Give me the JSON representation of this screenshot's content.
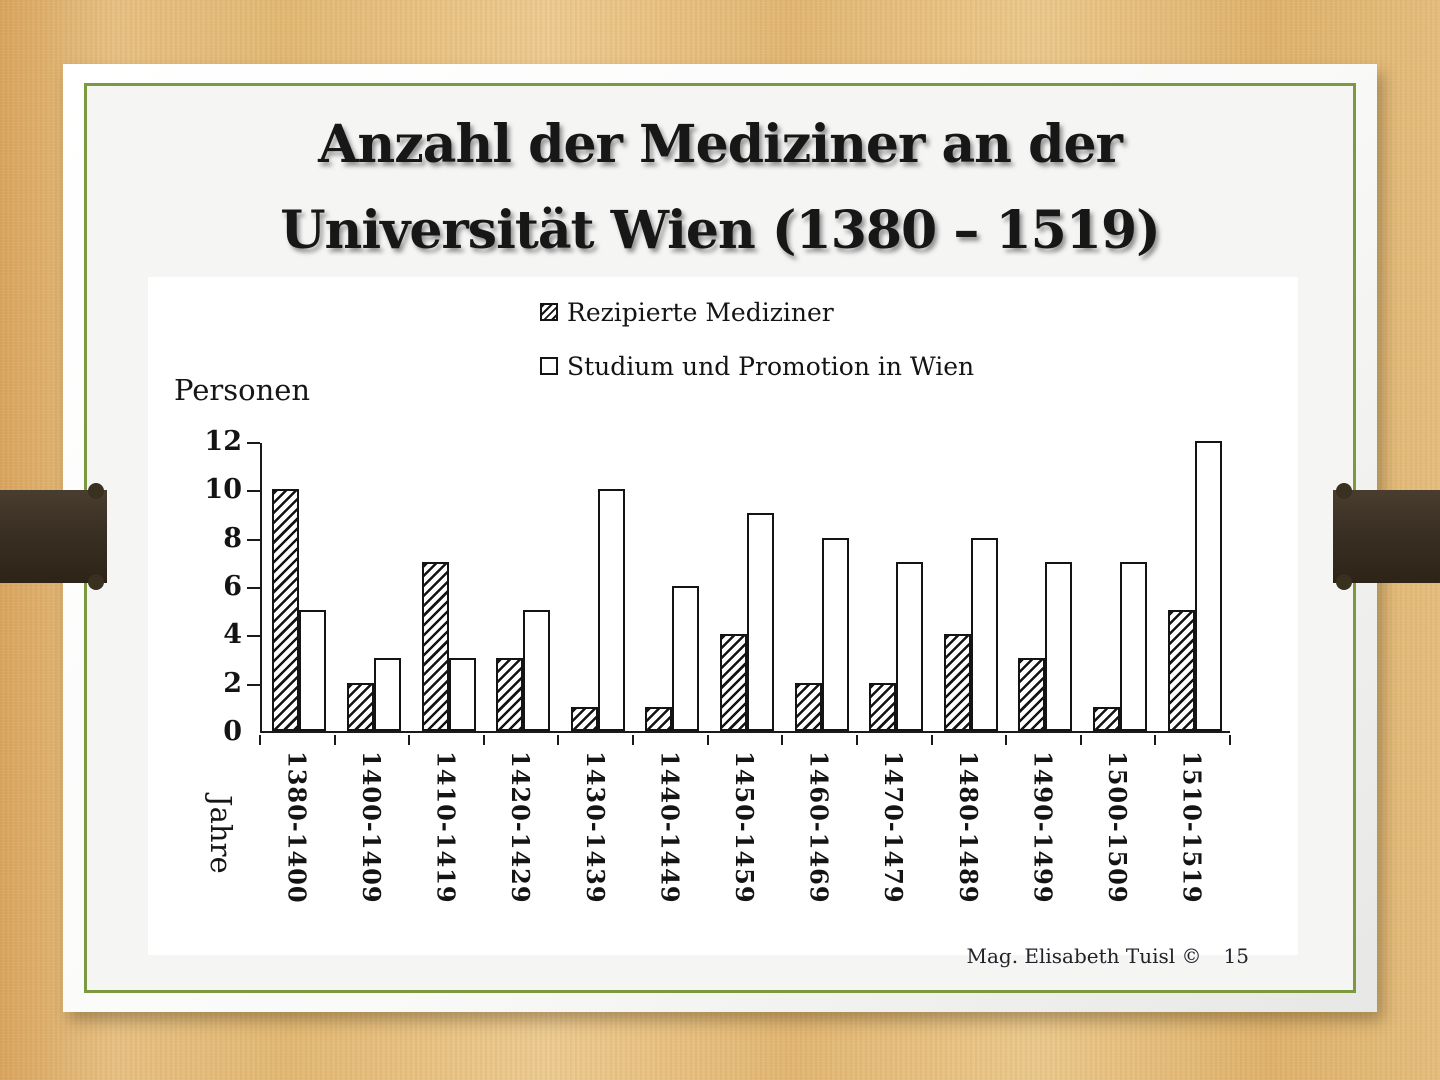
{
  "slide": {
    "title_line1": "Anzahl der Mediziner an der",
    "title_line2": "Universität Wien (1380 – 1519)",
    "footer_author": "Mag. Elisabeth Tuisl ©",
    "footer_page": "15"
  },
  "chart_data": {
    "type": "bar",
    "title": "",
    "ylabel": "Personen",
    "xlabel": "Jahre",
    "ylim": [
      0,
      12
    ],
    "yticks": [
      0,
      2,
      4,
      6,
      8,
      10,
      12
    ],
    "grid": false,
    "legend_position": "top-center",
    "categories": [
      "1380-1400",
      "1400-1409",
      "1410-1419",
      "1420-1429",
      "1430-1439",
      "1440-1449",
      "1450-1459",
      "1460-1469",
      "1470-1479",
      "1480-1489",
      "1490-1499",
      "1500-1509",
      "1510-1519"
    ],
    "series": [
      {
        "name": "Rezipierte Mediziner",
        "style": "hatched",
        "values": [
          10,
          2,
          7,
          3,
          1,
          1,
          4,
          2,
          2,
          4,
          3,
          1,
          5
        ]
      },
      {
        "name": "Studium und Promotion in Wien",
        "style": "white",
        "values": [
          5,
          3,
          3,
          5,
          10,
          6,
          9,
          8,
          7,
          8,
          7,
          7,
          12
        ]
      }
    ]
  },
  "colors": {
    "background_wood": "#e3ba76",
    "ribbon_brown": "#3a2f23",
    "border_green": "#7c9940",
    "bar_outline": "#141414",
    "text": "#171717"
  },
  "icons": {
    "legend_hatched_swatch": "hatched-square",
    "legend_white_swatch": "white-square"
  }
}
